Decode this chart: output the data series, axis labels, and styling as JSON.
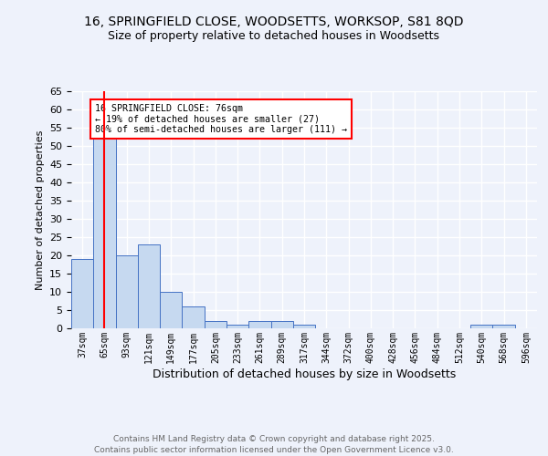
{
  "title1": "16, SPRINGFIELD CLOSE, WOODSETTS, WORKSOP, S81 8QD",
  "title2": "Size of property relative to detached houses in Woodsetts",
  "xlabel": "Distribution of detached houses by size in Woodsetts",
  "ylabel": "Number of detached properties",
  "categories": [
    "37sqm",
    "65sqm",
    "93sqm",
    "121sqm",
    "149sqm",
    "177sqm",
    "205sqm",
    "233sqm",
    "261sqm",
    "289sqm",
    "317sqm",
    "344sqm",
    "372sqm",
    "400sqm",
    "428sqm",
    "456sqm",
    "484sqm",
    "512sqm",
    "540sqm",
    "568sqm",
    "596sqm"
  ],
  "values": [
    19,
    53,
    20,
    23,
    10,
    6,
    2,
    1,
    2,
    2,
    1,
    0,
    0,
    0,
    0,
    0,
    0,
    0,
    1,
    1,
    0
  ],
  "bar_color": "#c6d9f0",
  "bar_edge_color": "#4472c4",
  "red_line_x": 1.0,
  "annotation_text": "16 SPRINGFIELD CLOSE: 76sqm\n← 19% of detached houses are smaller (27)\n80% of semi-detached houses are larger (111) →",
  "annotation_box_color": "white",
  "annotation_box_edge_color": "red",
  "red_line_color": "red",
  "ylim": [
    0,
    65
  ],
  "yticks": [
    0,
    5,
    10,
    15,
    20,
    25,
    30,
    35,
    40,
    45,
    50,
    55,
    60,
    65
  ],
  "footer1": "Contains HM Land Registry data © Crown copyright and database right 2025.",
  "footer2": "Contains public sector information licensed under the Open Government Licence v3.0.",
  "background_color": "#eef2fb",
  "grid_color": "white",
  "title_fontsize": 10,
  "subtitle_fontsize": 9,
  "footer_fontsize": 6.5
}
